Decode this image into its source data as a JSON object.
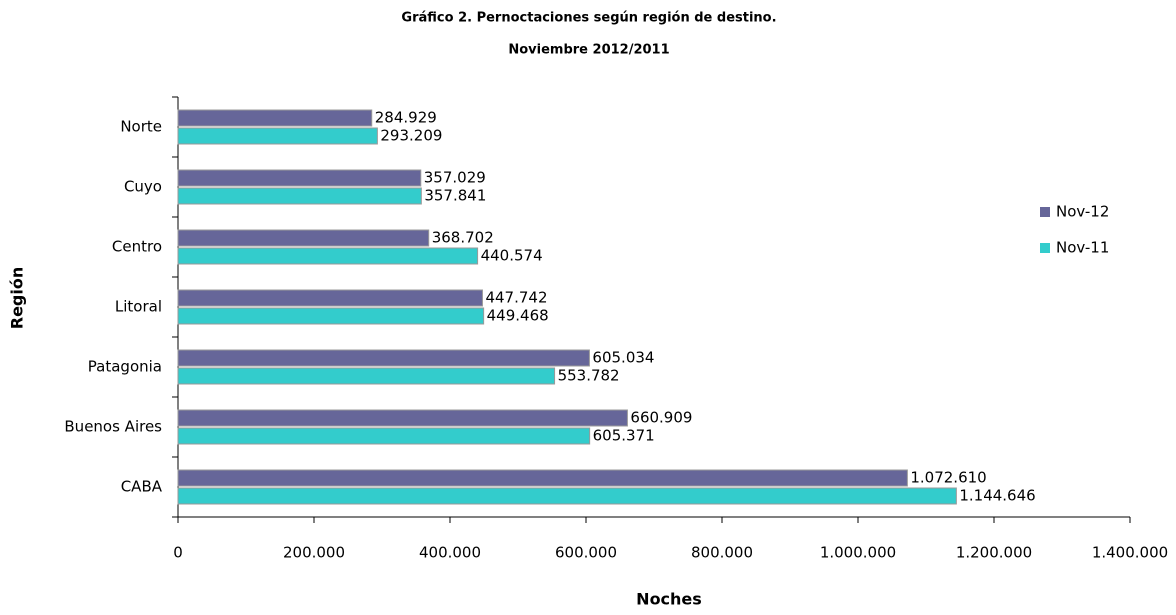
{
  "chart_data": {
    "type": "barh",
    "title": "Gráfico 2. Pernoctaciones según región de destino.",
    "subtitle": "Noviembre 2012/2011",
    "xlabel": "Noches",
    "ylabel": "Región",
    "categories": [
      "Norte",
      "Cuyo",
      "Centro",
      "Litoral",
      "Patagonia",
      "Buenos Aires",
      "CABA"
    ],
    "series": [
      {
        "name": "Nov-12",
        "color": "#666699",
        "values": [
          284929,
          357029,
          368702,
          447742,
          605034,
          660909,
          1072610
        ],
        "value_labels": [
          "284.929",
          "357.029",
          "368.702",
          "447.742",
          "605.034",
          "660.909",
          "1.072.610"
        ]
      },
      {
        "name": "Nov-11",
        "color": "#33cccc",
        "values": [
          293209,
          357841,
          440574,
          449468,
          553782,
          605371,
          1144646
        ],
        "value_labels": [
          "293.209",
          "357.841",
          "440.574",
          "449.468",
          "553.782",
          "605.371",
          "1.144.646"
        ]
      }
    ],
    "xlim": [
      0,
      1400000
    ],
    "xticks": [
      0,
      {
        "value": 200000,
        "label": "200.000"
      },
      {
        "value": 400000,
        "label": "400.000"
      },
      {
        "value": 600000,
        "label": "600.000"
      },
      {
        "value": 800000,
        "label": "800.000"
      },
      {
        "value": 1000000,
        "label": "1.000.000"
      },
      {
        "value": 1200000,
        "label": "1.200.000"
      },
      {
        "value": 1400000,
        "label": "1.400.000"
      }
    ],
    "legend": "right",
    "grid": false
  }
}
